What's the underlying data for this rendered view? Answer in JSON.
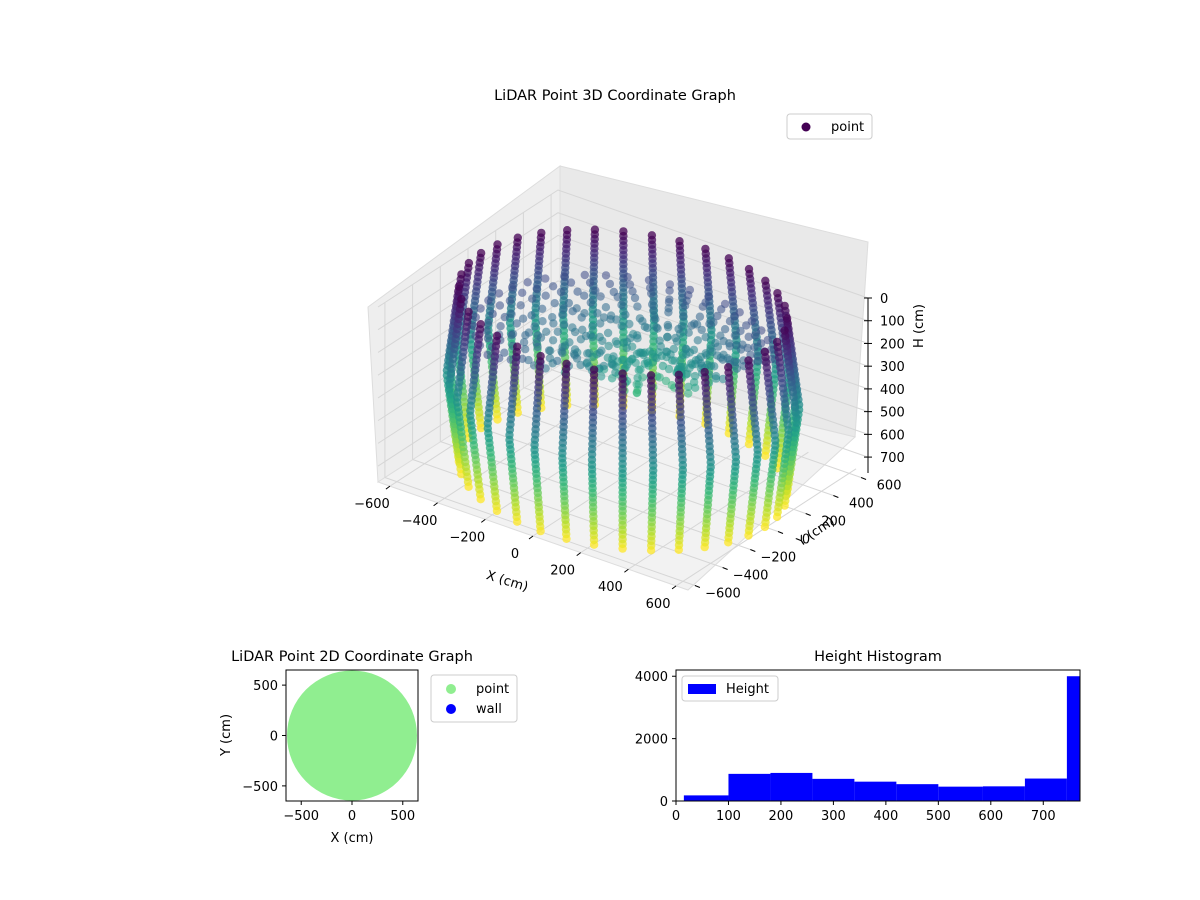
{
  "figure": {
    "background": "#ffffff"
  },
  "chart_data": [
    {
      "type": "scatter",
      "title": "LiDAR Point 3D Coordinate Graph",
      "xlabel": "X (cm)",
      "ylabel": "Y (cm)",
      "zlabel": "H (cm)",
      "xlim": [
        -650,
        650
      ],
      "ylim": [
        -650,
        650
      ],
      "zlim": [
        0,
        770
      ],
      "z_inverted": true,
      "x_ticks": [
        "−600",
        "−400",
        "−200",
        "0",
        "200",
        "400",
        "600"
      ],
      "x_tick_values": [
        -600,
        -400,
        -200,
        0,
        200,
        400,
        600
      ],
      "y_ticks": [
        "−600",
        "−400",
        "−200",
        "0",
        "200",
        "400",
        "600"
      ],
      "y_tick_values": [
        -600,
        -400,
        -200,
        0,
        200,
        400,
        600
      ],
      "z_ticks": [
        "0",
        "100",
        "200",
        "300",
        "400",
        "500",
        "600",
        "700"
      ],
      "z_tick_values": [
        0,
        100,
        200,
        300,
        400,
        500,
        600,
        700
      ],
      "colormap": "viridis",
      "legend": {
        "label": "point",
        "marker_color": "#440154",
        "position": "top-right"
      },
      "wall": {
        "radius": 640,
        "height_min": 0,
        "height_max": 770,
        "columns": 36
      },
      "interior": {
        "radius_max": 600,
        "height_min": 170,
        "height_max": 520
      },
      "grid": true
    },
    {
      "type": "scatter",
      "title": "LiDAR Point 2D Coordinate Graph",
      "xlabel": "X (cm)",
      "ylabel": "Y (cm)",
      "xlim": [
        -650,
        650
      ],
      "ylim": [
        -650,
        650
      ],
      "x_ticks": [
        "−500",
        "0",
        "500"
      ],
      "x_tick_values": [
        -500,
        0,
        500
      ],
      "y_ticks": [
        "−500",
        "0",
        "500"
      ],
      "y_tick_values": [
        -500,
        0,
        500
      ],
      "series": [
        {
          "name": "point",
          "color": "#90ee90",
          "shape": "disk",
          "radius": 640
        },
        {
          "name": "wall",
          "color": "#0000ff"
        }
      ],
      "legend_position": "outside-right"
    },
    {
      "type": "bar",
      "title": "Height Histogram",
      "xlim": [
        0,
        770
      ],
      "ylim": [
        0,
        4200
      ],
      "x_ticks": [
        "0",
        "100",
        "200",
        "300",
        "400",
        "500",
        "600",
        "700"
      ],
      "x_tick_values": [
        0,
        100,
        200,
        300,
        400,
        500,
        600,
        700
      ],
      "y_ticks": [
        "0",
        "2000",
        "4000"
      ],
      "y_tick_values": [
        0,
        2000,
        4000
      ],
      "bar_color": "#0000ff",
      "legend": {
        "label": "Height",
        "position": "top-left"
      },
      "bins": [
        {
          "x0": 15,
          "x1": 100,
          "count": 180
        },
        {
          "x0": 100,
          "x1": 180,
          "count": 870
        },
        {
          "x0": 180,
          "x1": 260,
          "count": 900
        },
        {
          "x0": 260,
          "x1": 340,
          "count": 710
        },
        {
          "x0": 340,
          "x1": 420,
          "count": 620
        },
        {
          "x0": 420,
          "x1": 500,
          "count": 540
        },
        {
          "x0": 500,
          "x1": 585,
          "count": 460
        },
        {
          "x0": 585,
          "x1": 665,
          "count": 470
        },
        {
          "x0": 665,
          "x1": 745,
          "count": 720
        },
        {
          "x0": 745,
          "x1": 770,
          "count": 4000
        }
      ]
    }
  ]
}
